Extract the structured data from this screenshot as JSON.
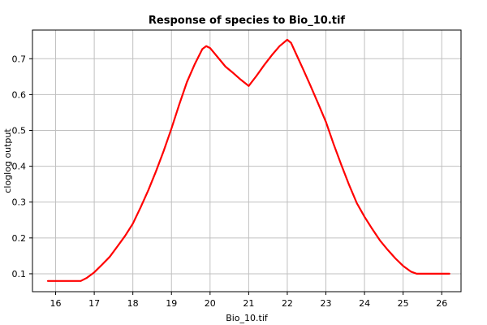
{
  "chart_data": {
    "type": "line",
    "title": "Response of species to Bio_10.tif",
    "xlabel": "Bio_10.tif",
    "ylabel": "cloglog output",
    "xlim": [
      15.4,
      26.5
    ],
    "ylim": [
      0.05,
      0.78
    ],
    "xticks": [
      16,
      17,
      18,
      19,
      20,
      21,
      22,
      23,
      24,
      25,
      26
    ],
    "yticks": [
      0.1,
      0.2,
      0.3,
      0.4,
      0.5,
      0.6,
      0.7
    ],
    "grid": true,
    "series": [
      {
        "color": "#ff0000",
        "x": [
          15.8,
          16.2,
          16.65,
          16.8,
          17.0,
          17.2,
          17.4,
          17.6,
          17.8,
          18.0,
          18.2,
          18.4,
          18.6,
          18.8,
          19.0,
          19.2,
          19.4,
          19.6,
          19.8,
          19.9,
          20.0,
          20.2,
          20.4,
          20.6,
          20.8,
          21.0,
          21.2,
          21.4,
          21.6,
          21.8,
          22.0,
          22.1,
          22.2,
          22.4,
          22.6,
          22.8,
          23.0,
          23.2,
          23.4,
          23.6,
          23.8,
          24.0,
          24.2,
          24.4,
          24.6,
          24.8,
          25.0,
          25.2,
          25.35,
          25.6,
          25.9,
          26.2
        ],
        "y": [
          0.08,
          0.08,
          0.08,
          0.088,
          0.104,
          0.125,
          0.147,
          0.176,
          0.206,
          0.24,
          0.285,
          0.333,
          0.386,
          0.443,
          0.505,
          0.572,
          0.635,
          0.684,
          0.727,
          0.735,
          0.73,
          0.704,
          0.678,
          0.66,
          0.641,
          0.624,
          0.652,
          0.682,
          0.71,
          0.735,
          0.753,
          0.744,
          0.72,
          0.673,
          0.625,
          0.575,
          0.524,
          0.462,
          0.404,
          0.348,
          0.297,
          0.259,
          0.225,
          0.193,
          0.167,
          0.143,
          0.122,
          0.106,
          0.1,
          0.1,
          0.1,
          0.1
        ]
      }
    ]
  }
}
